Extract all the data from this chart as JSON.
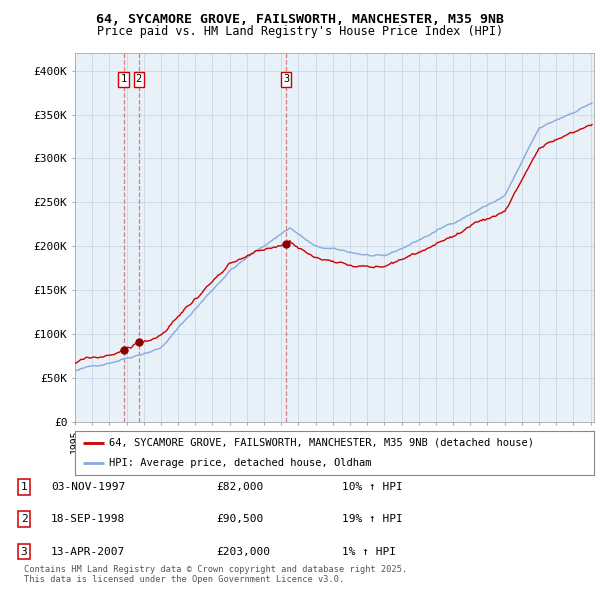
{
  "title_line1": "64, SYCAMORE GROVE, FAILSWORTH, MANCHESTER, M35 9NB",
  "title_line2": "Price paid vs. HM Land Registry's House Price Index (HPI)",
  "ylim": [
    0,
    420000
  ],
  "yticks": [
    0,
    50000,
    100000,
    150000,
    200000,
    250000,
    300000,
    350000,
    400000
  ],
  "ytick_labels": [
    "£0",
    "£50K",
    "£100K",
    "£150K",
    "£200K",
    "£250K",
    "£300K",
    "£350K",
    "£400K"
  ],
  "legend_line1": "64, SYCAMORE GROVE, FAILSWORTH, MANCHESTER, M35 9NB (detached house)",
  "legend_line2": "HPI: Average price, detached house, Oldham",
  "sale_color": "#cc0000",
  "hpi_color": "#88aadd",
  "vline_color": "#cc6666",
  "marker_color": "#880000",
  "chart_bg": "#e8f0f8",
  "transactions": [
    {
      "num": 1,
      "date": "03-NOV-1997",
      "price": 82000,
      "hpi_pct": "10% ↑ HPI",
      "year": 1997.83
    },
    {
      "num": 2,
      "date": "18-SEP-1998",
      "price": 90500,
      "hpi_pct": "19% ↑ HPI",
      "year": 1998.71
    },
    {
      "num": 3,
      "date": "13-APR-2007",
      "price": 203000,
      "hpi_pct": "1% ↑ HPI",
      "year": 2007.28
    }
  ],
  "footer": "Contains HM Land Registry data © Crown copyright and database right 2025.\nThis data is licensed under the Open Government Licence v3.0.",
  "background_color": "#ffffff",
  "grid_color": "#c8d8e8"
}
